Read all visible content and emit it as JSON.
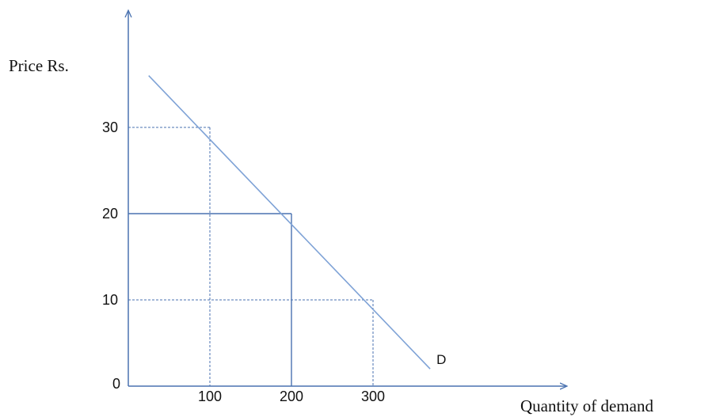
{
  "chart_data": {
    "type": "line",
    "ylabel": "Price Rs.",
    "xlabel": "Quantity of demand",
    "origin_label": "0",
    "x_ticks": [
      "100",
      "200",
      "300"
    ],
    "y_ticks": [
      "10",
      "20",
      "30"
    ],
    "series": [
      {
        "name": "D",
        "x": [
          25,
          370
        ],
        "y": [
          36,
          2
        ],
        "points": [
          {
            "x": 100,
            "y": 30
          },
          {
            "x": 200,
            "y": 20
          },
          {
            "x": 300,
            "y": 10
          }
        ]
      }
    ],
    "xlim": [
      0,
      420
    ],
    "ylim": [
      0,
      42
    ],
    "colors": {
      "axis": "#4a72b0",
      "line": "#7ea2d6",
      "guide_dashed": "#4a72b0",
      "guide_solid": "#4a72b0"
    },
    "grid": false,
    "legend": "none"
  }
}
